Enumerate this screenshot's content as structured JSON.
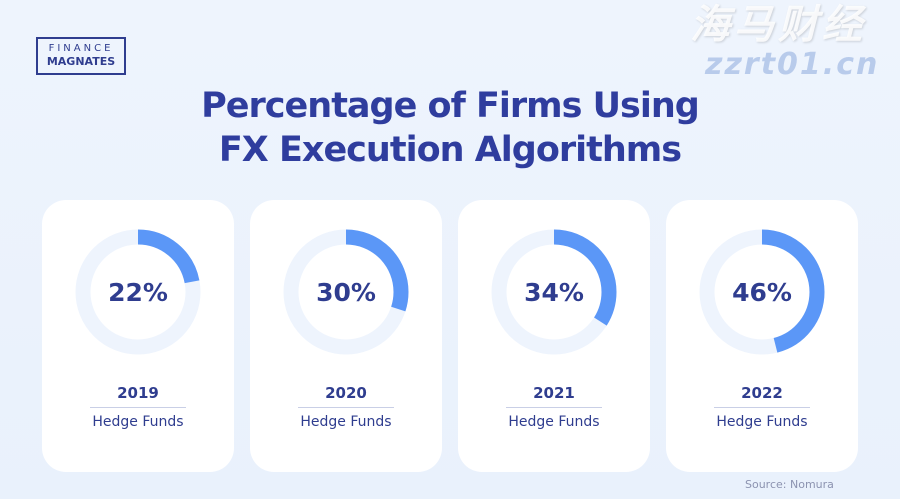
{
  "logo": {
    "line1": "FINANCE",
    "line2": "MAGNATES"
  },
  "chart_data": {
    "type": "donut",
    "title": "Percentage of Firms Using FX Execution Algorithms",
    "categories": [
      "2019",
      "2020",
      "2021",
      "2022"
    ],
    "values": [
      22,
      30,
      34,
      46
    ],
    "labels": [
      "22%",
      "30%",
      "34%",
      "46%"
    ],
    "segment_label": "Hedge Funds",
    "colors": {
      "filled": "#5b97f7",
      "track": "#eef4fd",
      "text": "#2f3d8f"
    }
  },
  "title_lines": [
    "Percentage of Firms Using",
    "FX Execution Algorithms"
  ],
  "source": "Source: Nomura",
  "watermark": {
    "cn": "海马财经",
    "url": "zzrt01.cn"
  }
}
